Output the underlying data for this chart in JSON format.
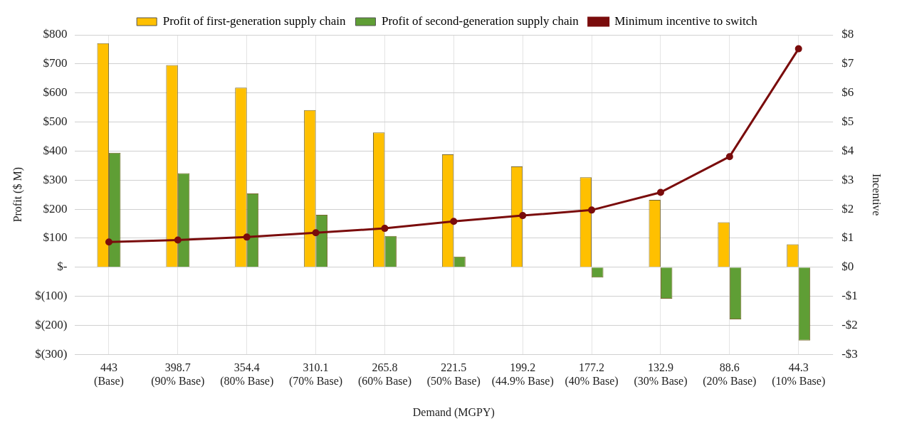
{
  "chart_data": {
    "type": "bar",
    "xlabel": "Demand (MGPY)",
    "ylabel": "Profit ($ M)",
    "y2label": "Incentive",
    "categories": [
      "443\n(Base)",
      "398.7\n(90% Base)",
      "354.4\n(80% Base)",
      "310.1\n(70% Base)",
      "265.8\n(60% Base)",
      "221.5\n(50% Base)",
      "199.2\n(44.9% Base)",
      "177.2\n(40% Base)",
      "132.9\n(30% Base)",
      "88.6\n(20% Base)",
      "44.3\n(10% Base)"
    ],
    "series": [
      {
        "name": "Profit of first-generation supply chain",
        "color": "#ffc000",
        "values": [
          771,
          696,
          618,
          541,
          464,
          389,
          347,
          310,
          232,
          155,
          79
        ]
      },
      {
        "name": "Profit of second-generation supply chain",
        "color": "#5f9e35",
        "values": [
          394,
          324,
          254,
          181,
          108,
          37,
          null,
          -35,
          -108,
          -179,
          -252
        ]
      },
      {
        "name": "Minimum incentive to switch",
        "type": "line",
        "axis": "y2",
        "color": "#7a0c0c",
        "marker": "circle",
        "values": [
          0.87,
          0.94,
          1.04,
          1.19,
          1.34,
          1.58,
          1.78,
          1.97,
          2.58,
          3.81,
          7.52
        ]
      }
    ],
    "ylim": [
      -300,
      800
    ],
    "yticks": [
      {
        "value": -300,
        "label": "$(300)"
      },
      {
        "value": -200,
        "label": "$(200)"
      },
      {
        "value": -100,
        "label": "$(100)"
      },
      {
        "value": 0,
        "label": "$-"
      },
      {
        "value": 100,
        "label": "$100"
      },
      {
        "value": 200,
        "label": "$200"
      },
      {
        "value": 300,
        "label": "$300"
      },
      {
        "value": 400,
        "label": "$400"
      },
      {
        "value": 500,
        "label": "$500"
      },
      {
        "value": 600,
        "label": "$600"
      },
      {
        "value": 700,
        "label": "$700"
      },
      {
        "value": 800,
        "label": "$800"
      }
    ],
    "y2lim": [
      -3,
      8
    ],
    "y2ticks": [
      {
        "value": -3,
        "label": "-$3"
      },
      {
        "value": -2,
        "label": "-$2"
      },
      {
        "value": -1,
        "label": "-$1"
      },
      {
        "value": 0,
        "label": "$0"
      },
      {
        "value": 1,
        "label": "$1"
      },
      {
        "value": 2,
        "label": "$2"
      },
      {
        "value": 3,
        "label": "$3"
      },
      {
        "value": 4,
        "label": "$4"
      },
      {
        "value": 5,
        "label": "$5"
      },
      {
        "value": 6,
        "label": "$6"
      },
      {
        "value": 7,
        "label": "$7"
      },
      {
        "value": 8,
        "label": "$8"
      }
    ],
    "grid": true,
    "legend": "top"
  }
}
